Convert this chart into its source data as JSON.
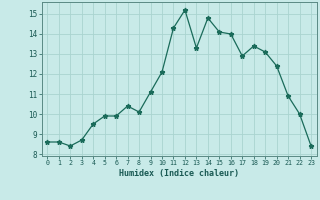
{
  "x": [
    0,
    1,
    2,
    3,
    4,
    5,
    6,
    7,
    8,
    9,
    10,
    11,
    12,
    13,
    14,
    15,
    16,
    17,
    18,
    19,
    20,
    21,
    22,
    23
  ],
  "y": [
    8.6,
    8.6,
    8.4,
    8.7,
    9.5,
    9.9,
    9.9,
    10.4,
    10.1,
    11.1,
    12.1,
    14.3,
    15.2,
    13.3,
    14.8,
    14.1,
    14.0,
    12.9,
    13.4,
    13.1,
    12.4,
    10.9,
    10.0,
    8.4
  ],
  "xlabel": "Humidex (Indice chaleur)",
  "xlim": [
    -0.5,
    23.5
  ],
  "ylim": [
    7.9,
    15.6
  ],
  "yticks": [
    8,
    9,
    10,
    11,
    12,
    13,
    14,
    15
  ],
  "xticks": [
    0,
    1,
    2,
    3,
    4,
    5,
    6,
    7,
    8,
    9,
    10,
    11,
    12,
    13,
    14,
    15,
    16,
    17,
    18,
    19,
    20,
    21,
    22,
    23
  ],
  "line_color": "#1a6b5a",
  "marker": "*",
  "marker_size": 3.5,
  "bg_color": "#c8eae8",
  "grid_color": "#aad4d0"
}
